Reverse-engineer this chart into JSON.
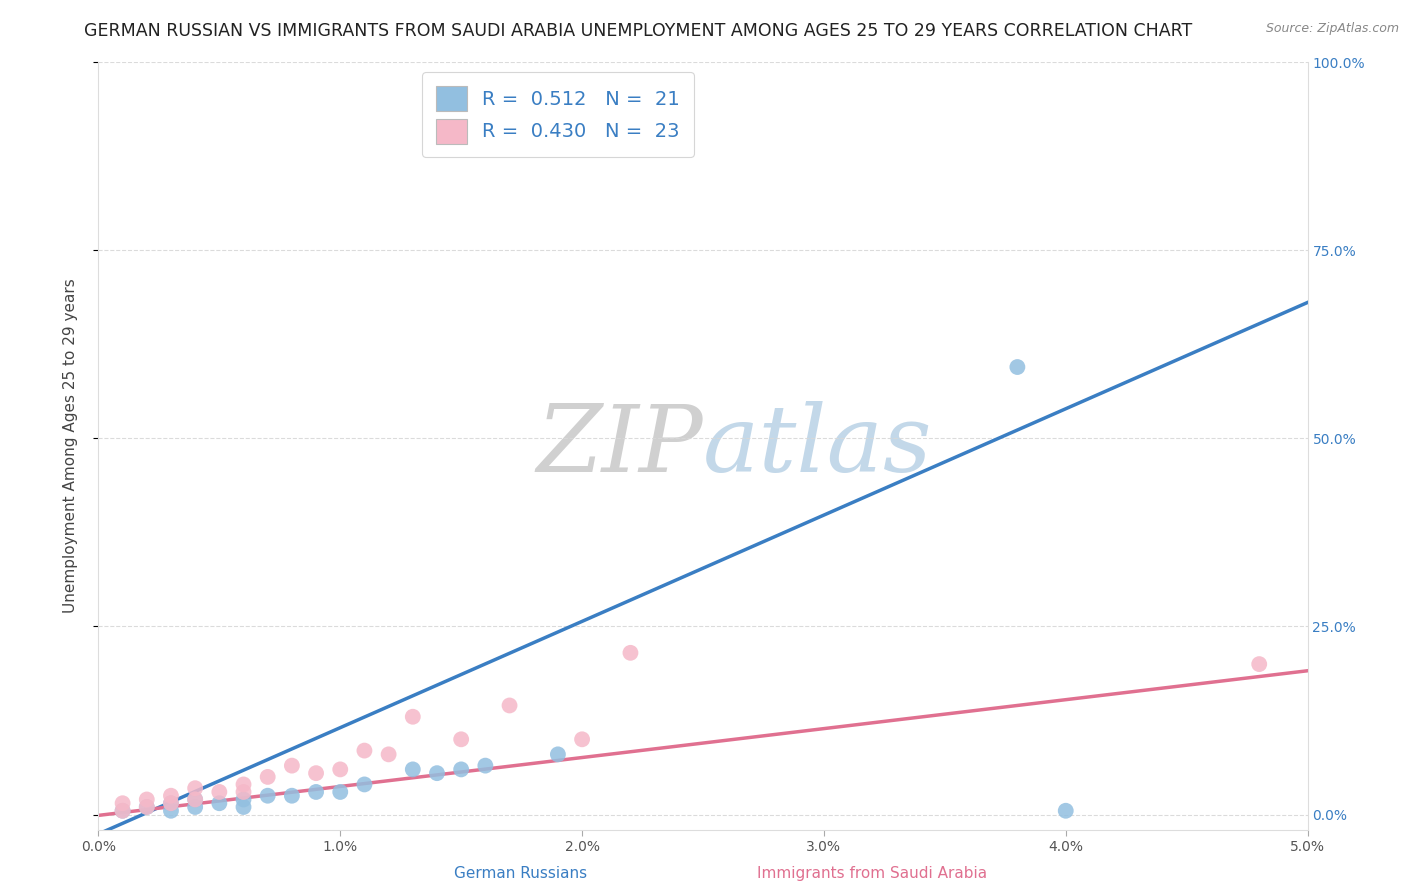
{
  "title": "GERMAN RUSSIAN VS IMMIGRANTS FROM SAUDI ARABIA UNEMPLOYMENT AMONG AGES 25 TO 29 YEARS CORRELATION CHART",
  "source_text": "Source: ZipAtlas.com",
  "ylabel": "Unemployment Among Ages 25 to 29 years",
  "blue_label": "German Russians",
  "pink_label": "Immigrants from Saudi Arabia",
  "blue_R": "0.512",
  "blue_N": "21",
  "pink_R": "0.430",
  "pink_N": "23",
  "blue_color": "#92bfe0",
  "pink_color": "#f5b8c8",
  "blue_line_color": "#3a7ec3",
  "pink_line_color": "#e07090",
  "watermark_zip": "ZIP",
  "watermark_atlas": "atlas",
  "xlim": [
    0.0,
    0.05
  ],
  "ylim": [
    -0.02,
    1.0
  ],
  "blue_scatter_x": [
    0.001,
    0.002,
    0.003,
    0.003,
    0.004,
    0.004,
    0.005,
    0.006,
    0.006,
    0.007,
    0.008,
    0.009,
    0.01,
    0.011,
    0.013,
    0.014,
    0.015,
    0.016,
    0.019,
    0.038,
    0.04
  ],
  "blue_scatter_y": [
    0.005,
    0.01,
    0.005,
    0.015,
    0.01,
    0.02,
    0.015,
    0.01,
    0.02,
    0.025,
    0.025,
    0.03,
    0.03,
    0.04,
    0.06,
    0.055,
    0.06,
    0.065,
    0.08,
    0.595,
    0.005
  ],
  "pink_scatter_x": [
    0.001,
    0.001,
    0.002,
    0.002,
    0.003,
    0.003,
    0.004,
    0.004,
    0.005,
    0.006,
    0.006,
    0.007,
    0.008,
    0.009,
    0.01,
    0.011,
    0.012,
    0.013,
    0.015,
    0.017,
    0.02,
    0.022,
    0.048
  ],
  "pink_scatter_y": [
    0.005,
    0.015,
    0.01,
    0.02,
    0.015,
    0.025,
    0.02,
    0.035,
    0.03,
    0.03,
    0.04,
    0.05,
    0.065,
    0.055,
    0.06,
    0.085,
    0.08,
    0.13,
    0.1,
    0.145,
    0.1,
    0.215,
    0.2
  ],
  "blue_trendline_x": [
    -0.001,
    0.051
  ],
  "blue_trendline_y": [
    -0.04,
    0.695
  ],
  "pink_trendline_x": [
    -0.001,
    0.051
  ],
  "pink_trendline_y": [
    -0.005,
    0.195
  ],
  "yticks": [
    0.0,
    0.25,
    0.5,
    0.75,
    1.0
  ],
  "ytick_labels_right": [
    "0.0%",
    "25.0%",
    "50.0%",
    "75.0%",
    "100.0%"
  ],
  "xticks": [
    0.0,
    0.01,
    0.02,
    0.03,
    0.04,
    0.05
  ],
  "xtick_labels": [
    "0.0%",
    "1.0%",
    "2.0%",
    "3.0%",
    "4.0%",
    "5.0%"
  ],
  "grid_color": "#d8d8d8",
  "background_color": "#ffffff",
  "title_fontsize": 12.5,
  "axis_label_fontsize": 11,
  "tick_fontsize": 10,
  "legend_fontsize": 14,
  "marker_size": 130
}
